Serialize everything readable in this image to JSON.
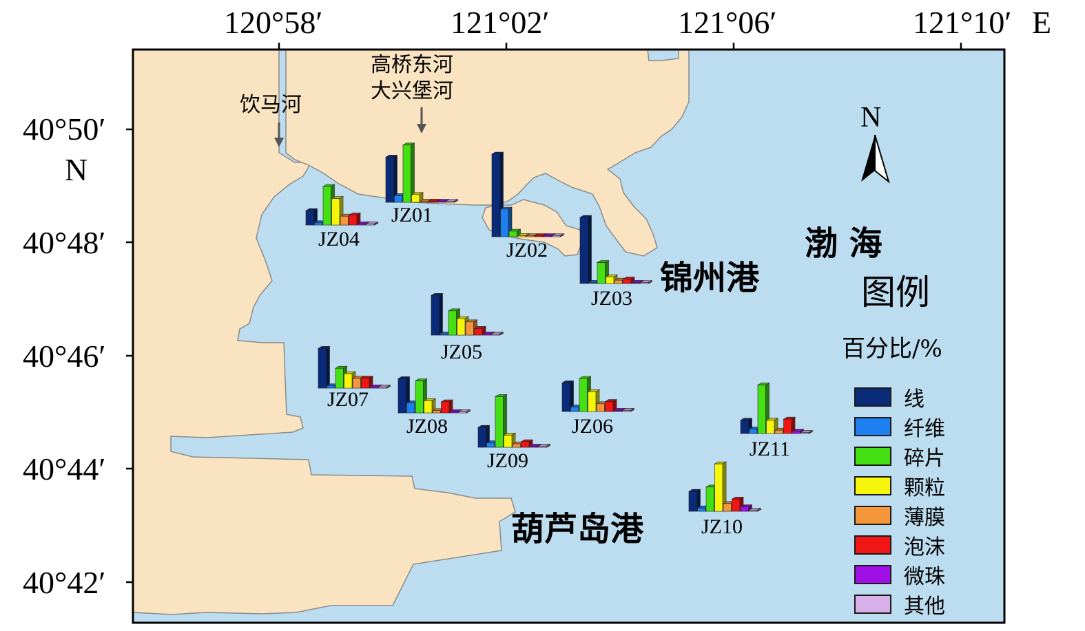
{
  "axes": {
    "lon_ticks": [
      "120°58′",
      "121°02′",
      "121°06′",
      "121°10′"
    ],
    "lon_suffix": "E",
    "lat_ticks": [
      "40°50′",
      "40°48′",
      "40°46′",
      "40°44′",
      "40°42′"
    ],
    "lat_suffix": "N"
  },
  "places": {
    "sea": "渤 海",
    "jinzhou_port": "锦州港",
    "huludao_port": "葫芦岛港",
    "river_yinma": "饮马河",
    "river_gaoqiao": "高桥东河",
    "river_daxingbao": "大兴堡河"
  },
  "north_arrow": {
    "label": "N",
    "icon": "north-arrow-icon"
  },
  "colors": {
    "sea": "#bcdcef",
    "land": "#fae3c0",
    "coast": "#8a8a8a"
  },
  "legend": {
    "title": "图例",
    "subtitle": "百分比/%",
    "items": [
      {
        "label": "线",
        "color": "#0a2a7a"
      },
      {
        "label": "纤维",
        "color": "#1e7ff0"
      },
      {
        "label": "碎片",
        "color": "#44e014"
      },
      {
        "label": "颗粒",
        "color": "#f6f60a"
      },
      {
        "label": "薄膜",
        "color": "#f5963a"
      },
      {
        "label": "泡沫",
        "color": "#f01616"
      },
      {
        "label": "微珠",
        "color": "#a010e6"
      },
      {
        "label": "其他",
        "color": "#d6b0e6"
      }
    ]
  },
  "chart_data": {
    "type": "bar",
    "categories": [
      "线",
      "纤维",
      "碎片",
      "颗粒",
      "薄膜",
      "泡沫",
      "微珠",
      "其他"
    ],
    "unit": "百分比/%",
    "stations": [
      {
        "name": "JZ01",
        "values": [
          41,
          6,
          52,
          7,
          1,
          1,
          0.5,
          0.5
        ]
      },
      {
        "name": "JZ02",
        "values": [
          75,
          25,
          5,
          1,
          0.5,
          0.5,
          0.5,
          0.5
        ]
      },
      {
        "name": "JZ03",
        "values": [
          60,
          1,
          19,
          6,
          3,
          4,
          1,
          0.5
        ]
      },
      {
        "name": "JZ04",
        "values": [
          13,
          2,
          35,
          24,
          8,
          9,
          1,
          1
        ]
      },
      {
        "name": "JZ05",
        "values": [
          36,
          1,
          22,
          15,
          12,
          6,
          1,
          1
        ]
      },
      {
        "name": "JZ06",
        "values": [
          26,
          4,
          30,
          18,
          7,
          9,
          1,
          1
        ]
      },
      {
        "name": "JZ07",
        "values": [
          36,
          2,
          18,
          13,
          9,
          9,
          1,
          1
        ]
      },
      {
        "name": "JZ08",
        "values": [
          31,
          9,
          29,
          11,
          2,
          10,
          1,
          1
        ]
      },
      {
        "name": "JZ09",
        "values": [
          18,
          4,
          46,
          11,
          3,
          5,
          1,
          1
        ]
      },
      {
        "name": "JZ10",
        "values": [
          18,
          3,
          22,
          43,
          7,
          11,
          4,
          1
        ]
      },
      {
        "name": "JZ11",
        "values": [
          12,
          4,
          44,
          12,
          3,
          13,
          2,
          1
        ]
      }
    ]
  }
}
